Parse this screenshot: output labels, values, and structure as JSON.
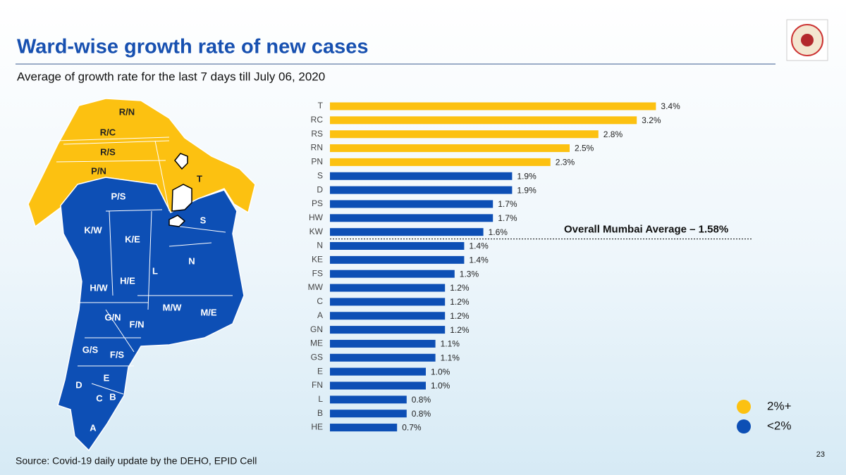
{
  "chart_data": {
    "type": "bar",
    "orientation": "horizontal",
    "title": "Ward-wise growth rate of new cases",
    "subtitle": "Average of growth rate for the last 7 days till July 06, 2020",
    "source": "Source: Covid-19 daily update by the DEHO, EPID Cell",
    "page_number": "23",
    "categories": [
      "T",
      "RC",
      "RS",
      "RN",
      "PN",
      "S",
      "D",
      "PS",
      "HW",
      "KW",
      "N",
      "KE",
      "FS",
      "MW",
      "C",
      "A",
      "GN",
      "ME",
      "GS",
      "E",
      "FN",
      "L",
      "B",
      "HE"
    ],
    "values": [
      3.4,
      3.2,
      2.8,
      2.5,
      2.3,
      1.9,
      1.9,
      1.7,
      1.7,
      1.6,
      1.4,
      1.4,
      1.3,
      1.2,
      1.2,
      1.2,
      1.2,
      1.1,
      1.1,
      1.0,
      1.0,
      0.8,
      0.8,
      0.7
    ],
    "value_labels": [
      "3.4%",
      "3.2%",
      "2.8%",
      "2.5%",
      "2.3%",
      "1.9%",
      "1.9%",
      "1.7%",
      "1.7%",
      "1.6%",
      "1.4%",
      "1.4%",
      "1.3%",
      "1.2%",
      "1.2%",
      "1.2%",
      "1.2%",
      "1.1%",
      "1.1%",
      "1.0%",
      "1.0%",
      "0.8%",
      "0.8%",
      "0.7%"
    ],
    "colors": [
      "#fcc111",
      "#fcc111",
      "#fcc111",
      "#fcc111",
      "#fcc111",
      "#0d4fb5",
      "#0d4fb5",
      "#0d4fb5",
      "#0d4fb5",
      "#0d4fb5",
      "#0d4fb5",
      "#0d4fb5",
      "#0d4fb5",
      "#0d4fb5",
      "#0d4fb5",
      "#0d4fb5",
      "#0d4fb5",
      "#0d4fb5",
      "#0d4fb5",
      "#0d4fb5",
      "#0d4fb5",
      "#0d4fb5",
      "#0d4fb5",
      "#0d4fb5"
    ],
    "average": {
      "value": 1.58,
      "label": "Overall Mumbai Average – 1.58%"
    },
    "legend": [
      {
        "name": "2%+",
        "color": "#fcc111"
      },
      {
        "name": "<2%",
        "color": "#0d4fb5"
      }
    ],
    "map_labels": [
      "R/N",
      "R/C",
      "R/S",
      "P/N",
      "T",
      "P/S",
      "S",
      "K/W",
      "K/E",
      "L",
      "N",
      "H/W",
      "H/E",
      "G/N",
      "F/N",
      "M/W",
      "M/E",
      "G/S",
      "F/S",
      "D",
      "E",
      "C",
      "B",
      "A"
    ]
  }
}
